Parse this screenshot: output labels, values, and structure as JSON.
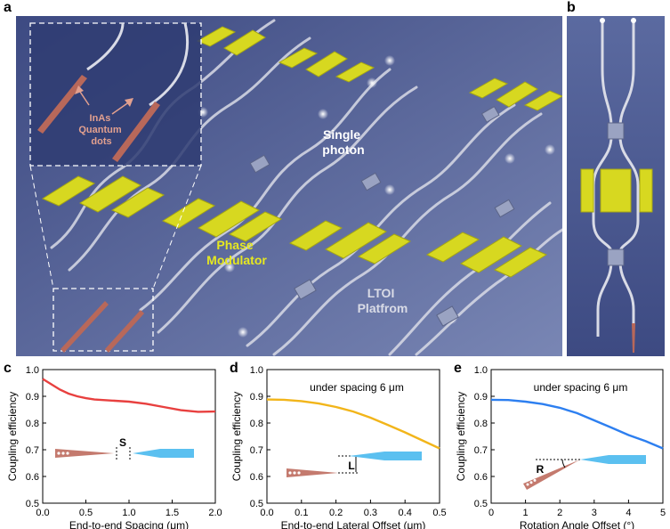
{
  "panels": {
    "a": "a",
    "b": "b",
    "c": "c",
    "d": "d",
    "e": "e"
  },
  "illustration_a": {
    "inset_label": "InAs\nQuantum\ndots",
    "single_photon": "Single\nphoton",
    "phase_modulator": "Phase\nModulator",
    "platform": "LTOI\nPlatfrom",
    "colors": {
      "background": "#5a6a9a",
      "electrode": "#d7d820",
      "waveguide": "#d9dbe6",
      "quantum_dot": "#b8685a",
      "annotation": "#e2a08f"
    }
  },
  "chart_data": [
    {
      "type": "line",
      "panel": "c",
      "x": [
        0.0,
        0.1,
        0.2,
        0.3,
        0.4,
        0.5,
        0.6,
        0.8,
        1.0,
        1.2,
        1.4,
        1.6,
        1.8,
        2.0
      ],
      "series": [
        {
          "values": [
            0.965,
            0.945,
            0.925,
            0.91,
            0.9,
            0.893,
            0.888,
            0.884,
            0.88,
            0.872,
            0.86,
            0.848,
            0.842,
            0.843
          ]
        }
      ],
      "title": "",
      "xlabel": "End-to-end Spacing (μm)",
      "ylabel": "Coupling efficiency",
      "xlim": [
        0,
        2
      ],
      "ylim": [
        0.5,
        1.0
      ],
      "xticks": [
        "0.0",
        "0.5",
        "1.0",
        "1.5",
        "2.0"
      ],
      "yticks": [
        "0.5",
        "0.6",
        "0.7",
        "0.8",
        "0.9",
        "1.0"
      ],
      "color": "#e8403f",
      "inset_label": "S",
      "annotation": ""
    },
    {
      "type": "line",
      "panel": "d",
      "x": [
        0.0,
        0.05,
        0.1,
        0.15,
        0.2,
        0.25,
        0.3,
        0.35,
        0.4,
        0.45,
        0.5
      ],
      "series": [
        {
          "values": [
            0.888,
            0.887,
            0.882,
            0.873,
            0.86,
            0.843,
            0.82,
            0.793,
            0.765,
            0.735,
            0.705
          ]
        }
      ],
      "title": "",
      "xlabel": "End-to-end Lateral Offset (μm)",
      "ylabel": "Coupling efficiency",
      "xlim": [
        0,
        0.5
      ],
      "ylim": [
        0.5,
        1.0
      ],
      "xticks": [
        "0.0",
        "0.1",
        "0.2",
        "0.3",
        "0.4",
        "0.5"
      ],
      "yticks": [
        "0.5",
        "0.6",
        "0.7",
        "0.8",
        "0.9",
        "1.0"
      ],
      "color": "#f2b51a",
      "inset_label": "L",
      "annotation": "under spacing 6 μm"
    },
    {
      "type": "line",
      "panel": "e",
      "x": [
        0,
        0.5,
        1.0,
        1.5,
        2.0,
        2.5,
        3.0,
        3.5,
        4.0,
        4.5,
        5.0
      ],
      "series": [
        {
          "values": [
            0.887,
            0.886,
            0.88,
            0.871,
            0.857,
            0.837,
            0.81,
            0.783,
            0.755,
            0.732,
            0.705
          ]
        }
      ],
      "title": "",
      "xlabel": "Rotation Angle Offset (°)",
      "ylabel": "Coupling efficiency",
      "xlim": [
        0,
        5
      ],
      "ylim": [
        0.5,
        1.0
      ],
      "xticks": [
        "0",
        "1",
        "2",
        "3",
        "4",
        "5"
      ],
      "yticks": [
        "0.5",
        "0.6",
        "0.7",
        "0.8",
        "0.9",
        "1.0"
      ],
      "color": "#2d7ff0",
      "inset_label": "R",
      "annotation": "under spacing 6 μm"
    }
  ]
}
